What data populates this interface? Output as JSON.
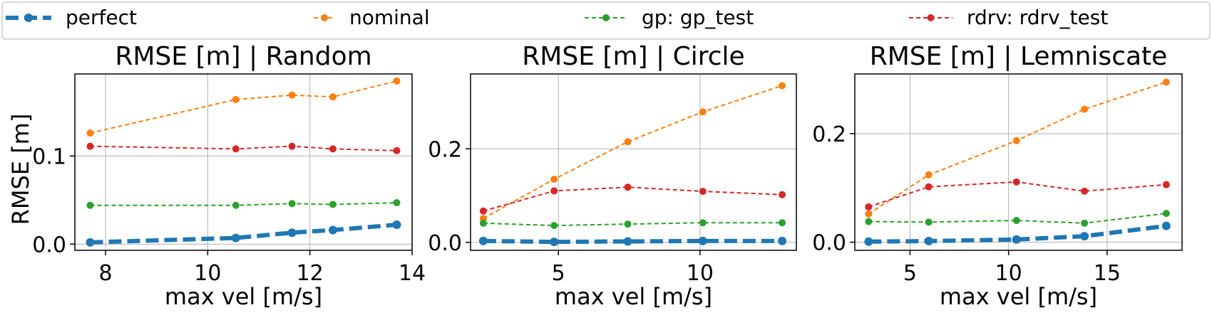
{
  "legend": {
    "entries": [
      {
        "name": "perfect",
        "color": "#1f77b4",
        "dashed_thick": true
      },
      {
        "name": "nominal",
        "color": "#ff7f0e"
      },
      {
        "name": "gp: gp_test",
        "color": "#2ca02c"
      },
      {
        "name": "rdrv: rdrv_test",
        "color": "#d62728"
      }
    ]
  },
  "chart_data": [
    {
      "type": "line",
      "title": "RMSE [m] | Random",
      "xlabel": "max vel [m/s]",
      "ylabel": "RMSE [m]",
      "xlim": [
        7.4,
        14.0
      ],
      "ylim": [
        -0.007,
        0.193
      ],
      "xticks": [
        8,
        10,
        12,
        14
      ],
      "yticks": [
        0.0,
        0.1
      ],
      "ytick_labels": [
        "0.0",
        "0.1"
      ],
      "grid": true,
      "x": [
        7.7,
        10.55,
        11.65,
        12.45,
        13.7
      ],
      "series": [
        {
          "name": "perfect",
          "values": [
            0.002,
            0.007,
            0.013,
            0.016,
            0.022
          ]
        },
        {
          "name": "nominal",
          "values": [
            0.126,
            0.164,
            0.169,
            0.167,
            0.185
          ]
        },
        {
          "name": "gp: gp_test",
          "values": [
            0.044,
            0.044,
            0.046,
            0.045,
            0.047
          ]
        },
        {
          "name": "rdrv: rdrv_test",
          "values": [
            0.111,
            0.108,
            0.111,
            0.108,
            0.106
          ]
        }
      ]
    },
    {
      "type": "line",
      "title": "RMSE [m] | Circle",
      "xlabel": "max vel [m/s]",
      "ylabel": "",
      "xlim": [
        1.9,
        13.4
      ],
      "ylim": [
        -0.017,
        0.36
      ],
      "xticks": [
        5,
        10
      ],
      "yticks": [
        0.0,
        0.2
      ],
      "ytick_labels": [
        "0.0",
        "0.2"
      ],
      "grid": true,
      "x": [
        2.35,
        4.85,
        7.45,
        10.1,
        12.9
      ],
      "series": [
        {
          "name": "perfect",
          "values": [
            0.003,
            0.001,
            0.002,
            0.003,
            0.003
          ]
        },
        {
          "name": "nominal",
          "values": [
            0.051,
            0.135,
            0.215,
            0.279,
            0.335
          ]
        },
        {
          "name": "gp: gp_test",
          "values": [
            0.041,
            0.036,
            0.039,
            0.042,
            0.042
          ]
        },
        {
          "name": "rdrv: rdrv_test",
          "values": [
            0.067,
            0.11,
            0.118,
            0.109,
            0.102
          ]
        }
      ]
    },
    {
      "type": "line",
      "title": "RMSE [m] | Lemniscate",
      "xlabel": "max vel [m/s]",
      "ylabel": "",
      "xlim": [
        2.2,
        18.8
      ],
      "ylim": [
        -0.015,
        0.31
      ],
      "xticks": [
        5,
        10,
        15
      ],
      "yticks": [
        0.0,
        0.2
      ],
      "ytick_labels": [
        "0.0",
        "0.2"
      ],
      "grid": true,
      "x": [
        2.9,
        5.95,
        10.4,
        13.85,
        18.0
      ],
      "series": [
        {
          "name": "perfect",
          "values": [
            0.001,
            0.002,
            0.005,
            0.011,
            0.03
          ]
        },
        {
          "name": "nominal",
          "values": [
            0.052,
            0.124,
            0.187,
            0.245,
            0.295
          ]
        },
        {
          "name": "gp: gp_test",
          "values": [
            0.038,
            0.037,
            0.04,
            0.035,
            0.053
          ]
        },
        {
          "name": "rdrv: rdrv_test",
          "values": [
            0.065,
            0.102,
            0.111,
            0.094,
            0.106
          ]
        }
      ]
    }
  ]
}
